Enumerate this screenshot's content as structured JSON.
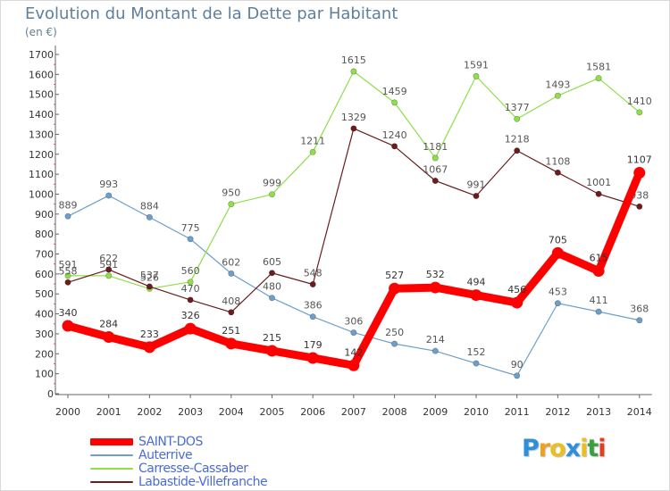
{
  "chart": {
    "title": "Evolution du Montant de la Dette par Habitant",
    "unit": "(en €)"
  },
  "chart_data": {
    "type": "line",
    "title": "Evolution du Montant de la Dette par Habitant",
    "subtitle": "(en €)",
    "x": [
      "2000",
      "2001",
      "2002",
      "2003",
      "2004",
      "2005",
      "2006",
      "2007",
      "2008",
      "2009",
      "2010",
      "2011",
      "2012",
      "2013",
      "2014"
    ],
    "ylim": [
      0,
      1700
    ],
    "ytick_step": 100,
    "grid": false,
    "legend_position": "bottom-left",
    "series": [
      {
        "name": "SAINT-DOS",
        "color": "#ff0000",
        "label_color": "#333333",
        "values": [
          340,
          284,
          233,
          326,
          251,
          215,
          179,
          142,
          527,
          532,
          494,
          456,
          705,
          615,
          1107
        ]
      },
      {
        "name": "Auterrive",
        "color": "#6e9fcb",
        "label_color": "#555555",
        "values": [
          889,
          993,
          884,
          775,
          602,
          480,
          386,
          306,
          250,
          214,
          152,
          90,
          453,
          411,
          368
        ]
      },
      {
        "name": "Carresse-Cassaber",
        "color": "#8fde4a",
        "label_color": "#555555",
        "values": [
          591,
          591,
          526,
          560,
          950,
          999,
          1211,
          1615,
          1459,
          1181,
          1591,
          1377,
          1493,
          1581,
          1410
        ]
      },
      {
        "name": "Labastide-Villefranche",
        "color": "#6b1d1d",
        "label_color": "#555555",
        "values": [
          558,
          622,
          537,
          470,
          408,
          605,
          548,
          1329,
          1240,
          1067,
          991,
          1218,
          1108,
          1001,
          938
        ]
      }
    ]
  },
  "legend": {
    "items": [
      {
        "label": "SAINT-DOS",
        "color": "#ff0000",
        "text_color": "#4b6bd6"
      },
      {
        "label": "Auterrive",
        "color": "#6e9fcb",
        "text_color": "#4b6bd6"
      },
      {
        "label": "Carresse-Cassaber",
        "color": "#8fde4a",
        "text_color": "#4b6bd6"
      },
      {
        "label": "Labastide-Villefranche",
        "color": "#6b1d1d",
        "text_color": "#4b6bd6"
      }
    ]
  },
  "logo": {
    "letters": [
      "P",
      "r",
      "o",
      "x",
      "i",
      "t",
      "i"
    ],
    "colors": [
      "#2f8fd8",
      "#f0a020",
      "#e8c020",
      "#2f8fd8",
      "#e8c020",
      "#3aa040",
      "#e04020"
    ]
  }
}
